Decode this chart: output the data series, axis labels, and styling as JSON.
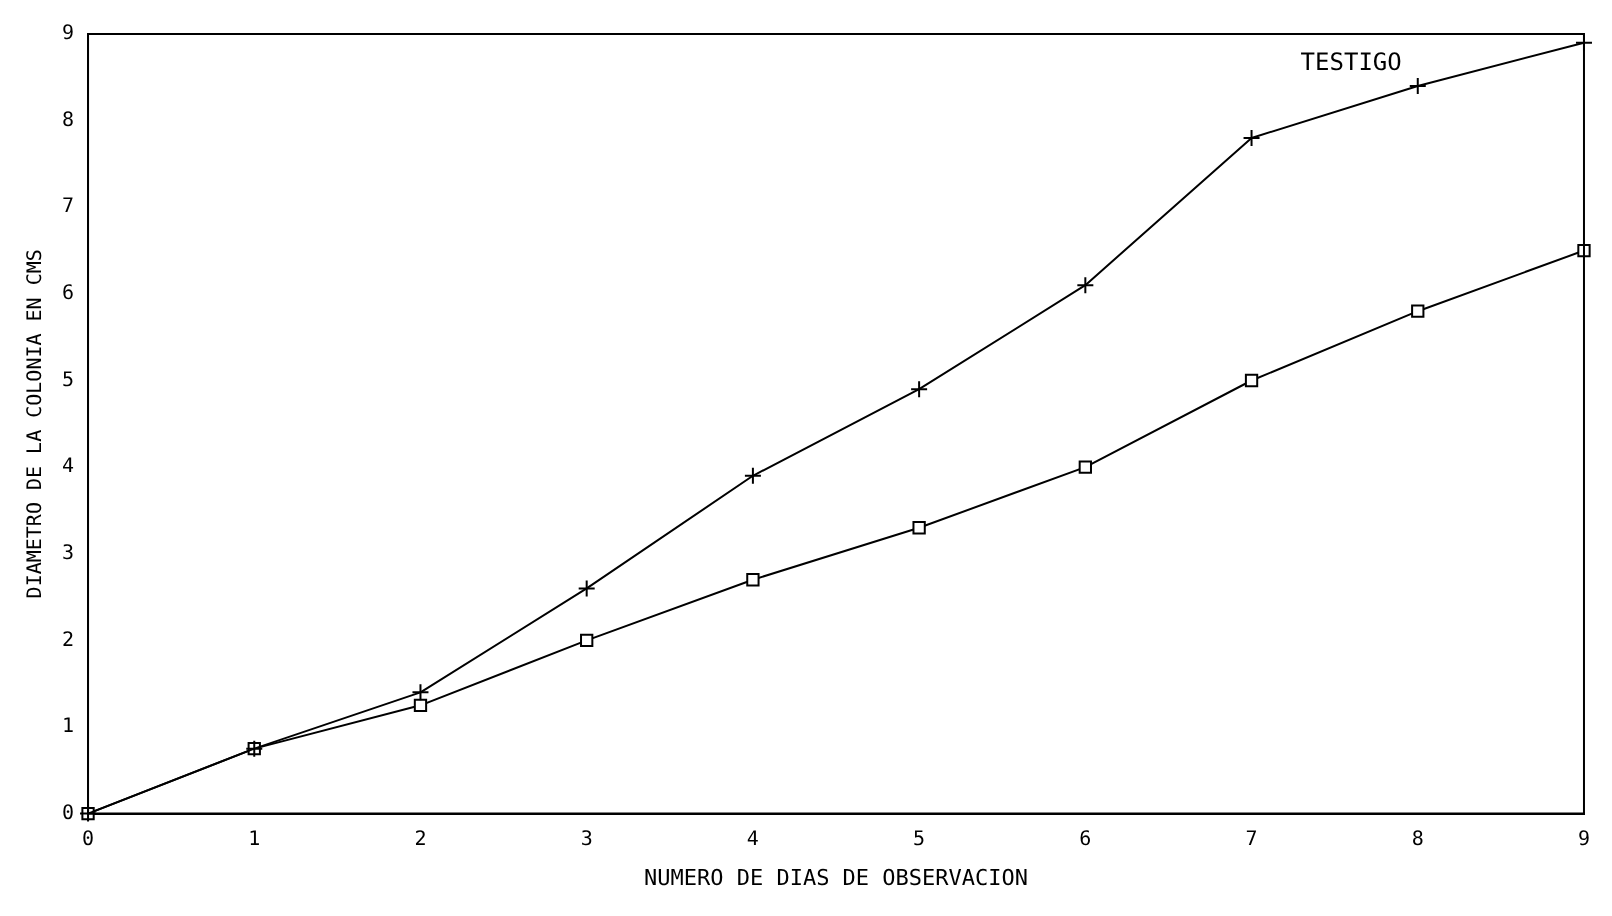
{
  "chart_data": {
    "type": "line",
    "xlabel": "NUMERO DE DIAS DE OBSERVACION",
    "ylabel": "DIAMETRO DE LA COLONIA EN CMS",
    "x": [
      0,
      1,
      2,
      3,
      4,
      5,
      6,
      7,
      8,
      9
    ],
    "series": [
      {
        "color": "#000000",
        "marker": "square",
        "values": [
          0,
          0.75,
          1.25,
          2.0,
          2.7,
          3.3,
          4.0,
          5.0,
          5.8,
          6.5
        ]
      },
      {
        "name": "TESTIGO",
        "color": "#000000",
        "marker": "cross",
        "values": [
          0,
          0.75,
          1.4,
          2.6,
          3.9,
          4.9,
          6.1,
          7.8,
          8.4,
          8.9
        ]
      }
    ],
    "xlim": [
      0,
      9
    ],
    "xticks": [
      0,
      1,
      2,
      3,
      4,
      5,
      6,
      7,
      8,
      9
    ],
    "ylim": [
      0,
      9
    ],
    "yticks": [
      0,
      1,
      2,
      3,
      4,
      5,
      6,
      7,
      8,
      9
    ],
    "grid": false,
    "legend": false,
    "line_style": "solid"
  }
}
